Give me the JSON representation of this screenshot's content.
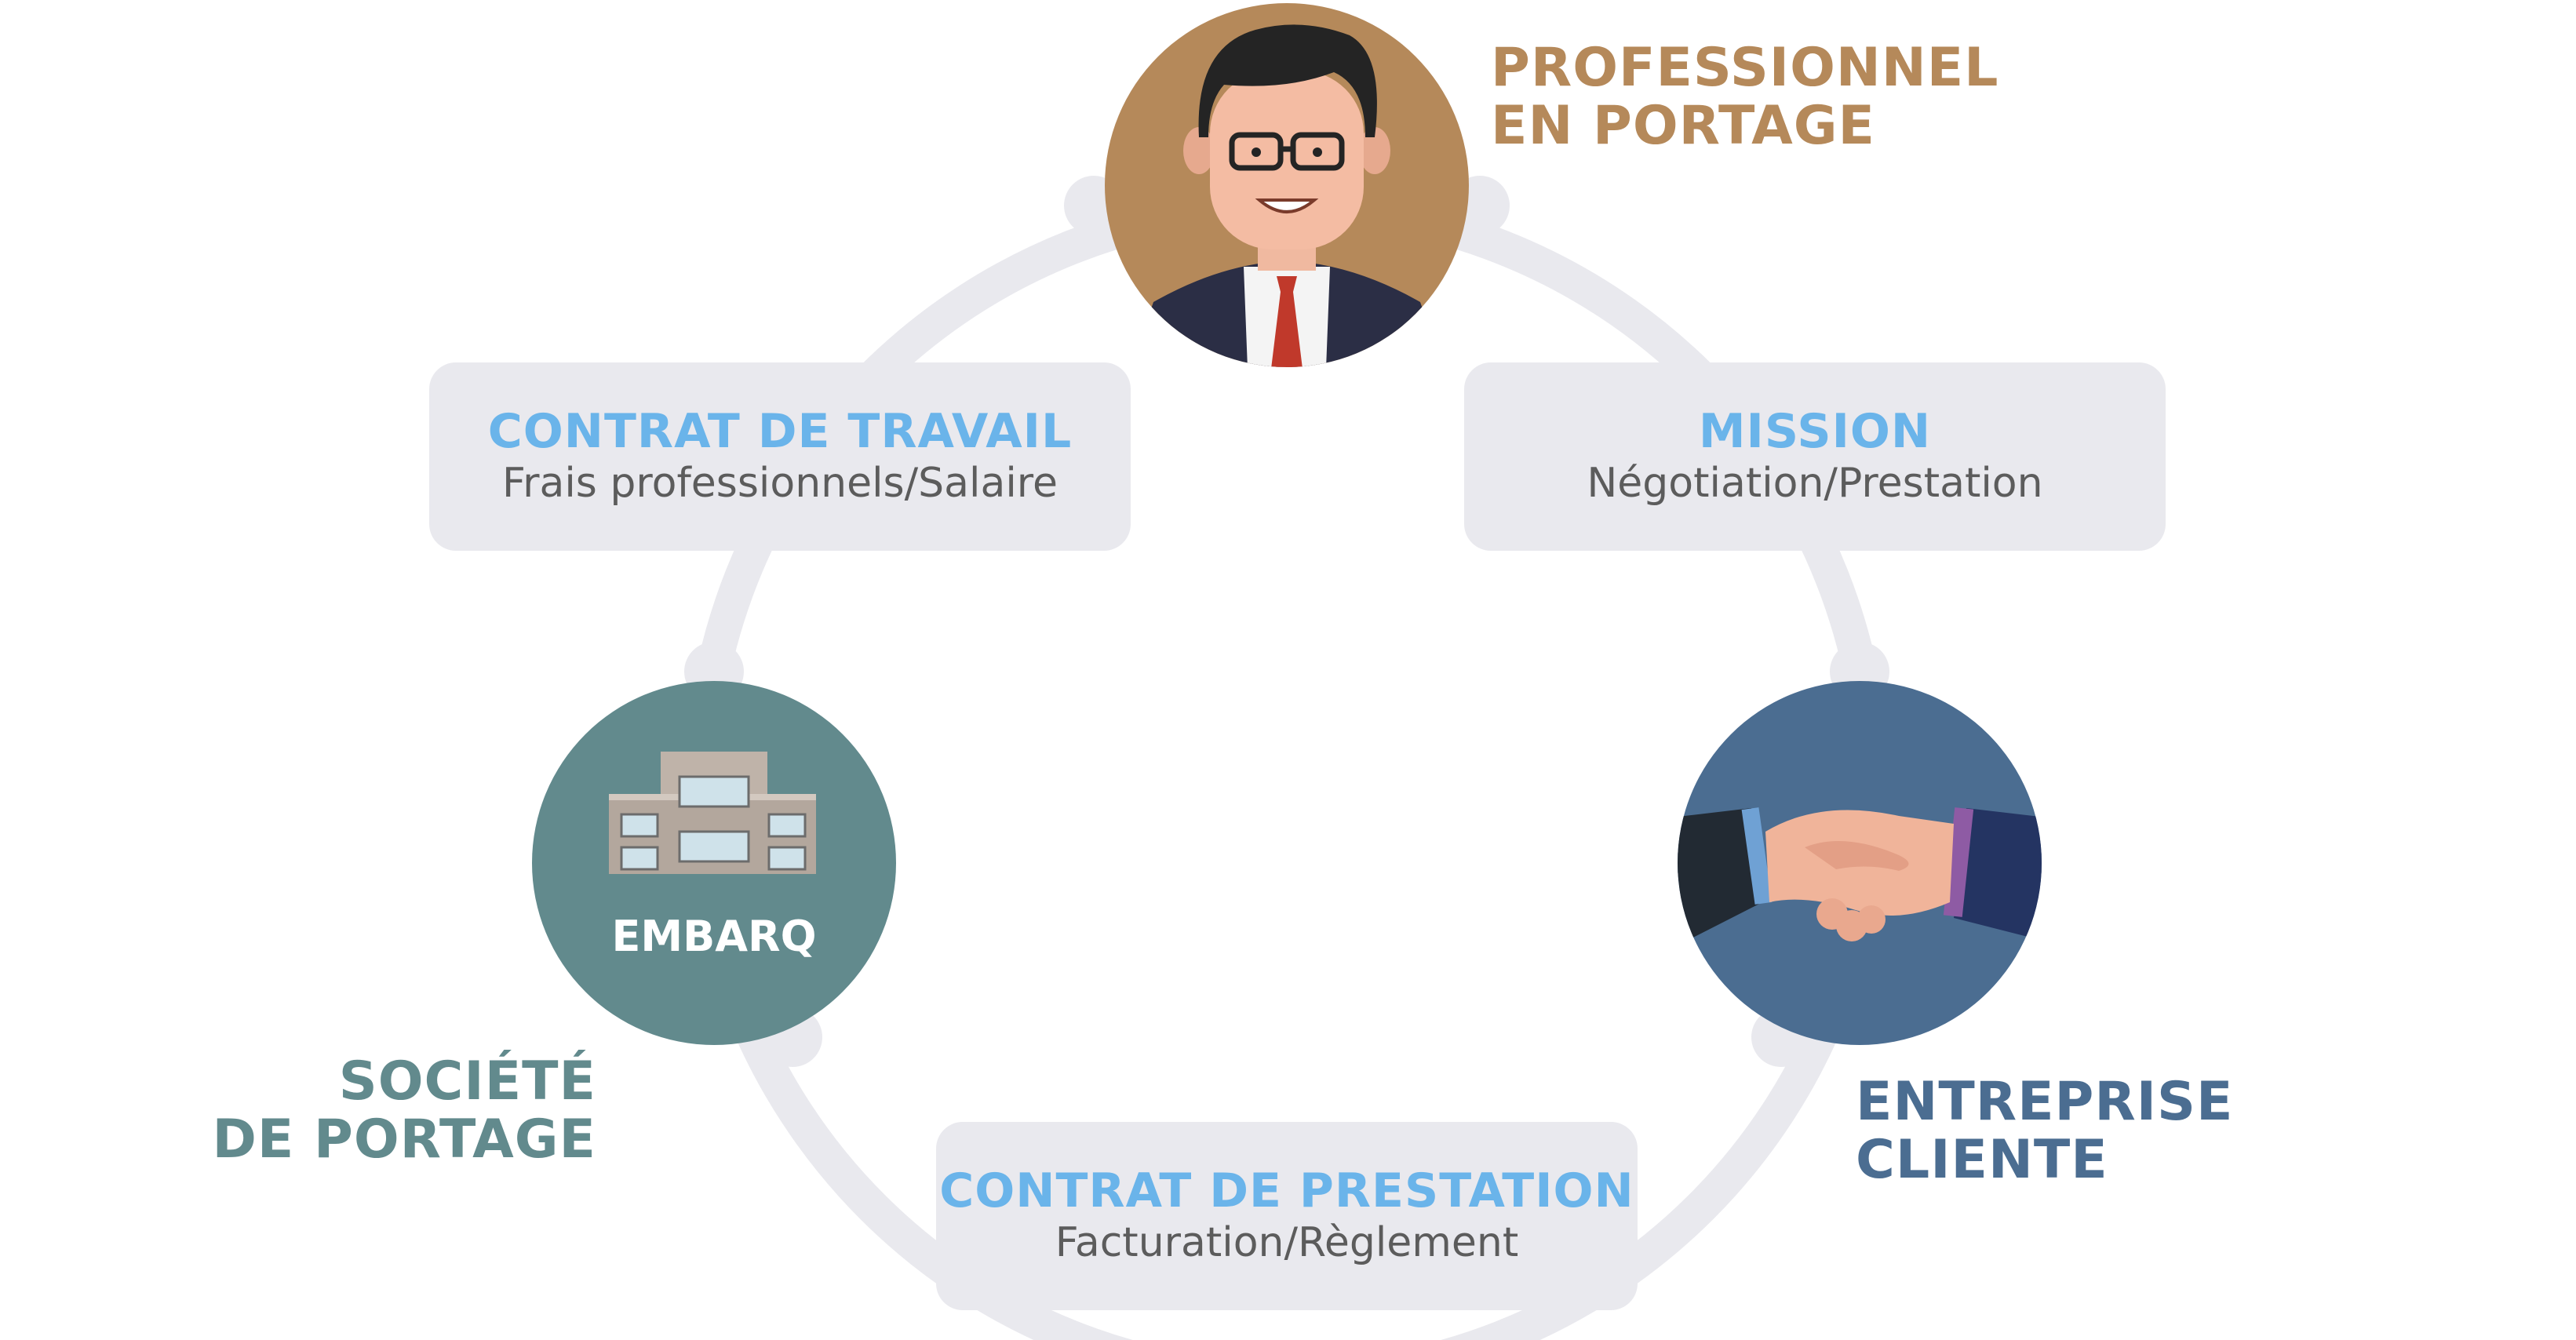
{
  "colors": {
    "ring": "#e9e9ee",
    "card_bg": "#e9e9ee",
    "card_title": "#6ab4ea",
    "card_sub": "#5c5c5c",
    "professionnel": "#b5895a",
    "societe": "#628a8d",
    "entreprise": "#4b6d91"
  },
  "nodes": {
    "professionnel": {
      "label_line1": "PROFESSIONNEL",
      "label_line2": "EN PORTAGE",
      "icon": "businessman-icon"
    },
    "societe": {
      "label_line1": "SOCIÉTÉ",
      "label_line2": "DE PORTAGE",
      "logo_text": "EMBARQ",
      "icon": "building-icon"
    },
    "entreprise": {
      "label_line1": "ENTREPRISE",
      "label_line2": "CLIENTE",
      "icon": "handshake-icon"
    }
  },
  "relations": {
    "contrat_travail": {
      "title": "CONTRAT DE TRAVAIL",
      "subtitle": "Frais professionnels/Salaire"
    },
    "mission": {
      "title": "MISSION",
      "subtitle": "Négotiation/Prestation"
    },
    "contrat_prestation": {
      "title": "CONTRAT DE PRESTATION",
      "subtitle": "Facturation/Règlement"
    }
  }
}
